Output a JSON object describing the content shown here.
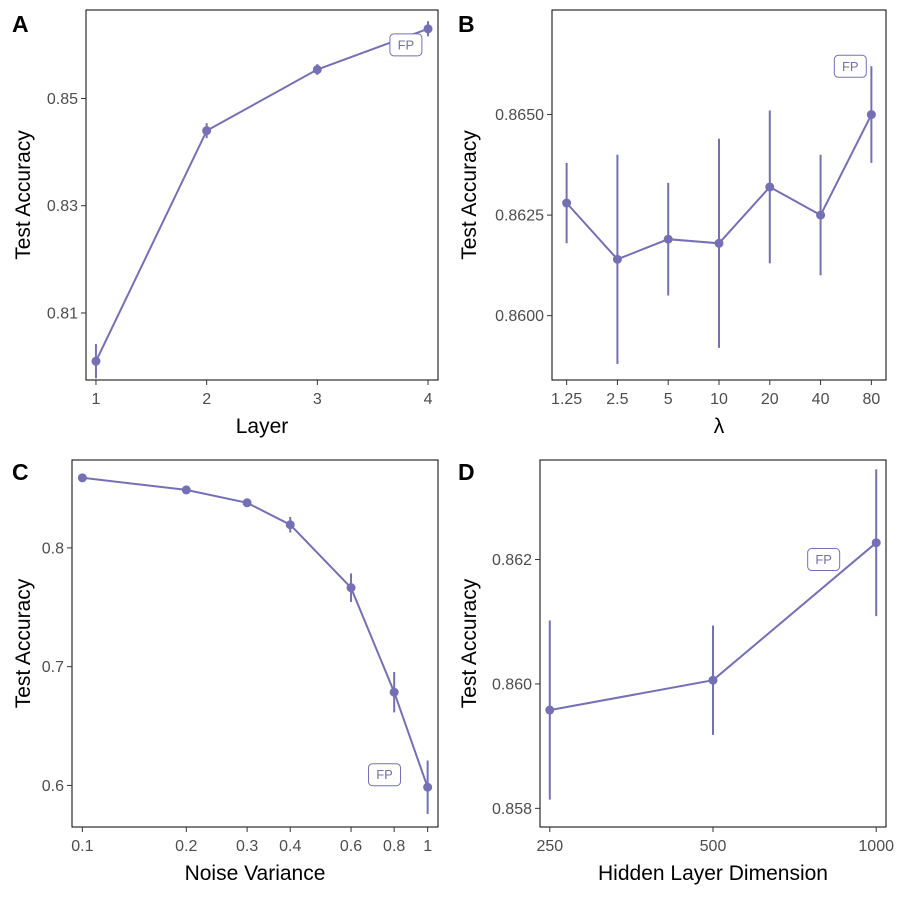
{
  "colors": {
    "series": "#7570b3",
    "frame": "#000000",
    "tick_text": "#4d4d4d"
  },
  "chart_data": [
    {
      "panel": "A",
      "type": "line",
      "xlabel": "Layer",
      "ylabel": "Test Accuracy",
      "x_scale": "linear",
      "x": [
        1,
        2,
        3,
        4
      ],
      "x_ticks": [
        "1",
        "2",
        "3",
        "4"
      ],
      "y": [
        0.801,
        0.844,
        0.8554,
        0.863
      ],
      "y_err": [
        0.0032,
        0.0014,
        0.001,
        0.0014
      ],
      "y_ticks": [
        "0.81",
        "0.83",
        "0.85"
      ],
      "y_tick_values": [
        0.81,
        0.83,
        0.85
      ],
      "ylim": [
        0.7975,
        0.8665
      ],
      "annotation": "FP",
      "annotation_at": [
        3.8,
        0.86
      ],
      "grid": false
    },
    {
      "panel": "B",
      "type": "line",
      "xlabel": "λ",
      "ylabel": "Test Accuracy",
      "x_scale": "log",
      "x": [
        1.25,
        2.5,
        5,
        10,
        20,
        40,
        80
      ],
      "x_ticks": [
        "1.25",
        "2.5",
        "5",
        "10",
        "20",
        "40",
        "80"
      ],
      "y": [
        0.8628,
        0.8614,
        0.8619,
        0.8618,
        0.8632,
        0.8625,
        0.865
      ],
      "y_err": [
        0.001,
        0.0026,
        0.0014,
        0.0026,
        0.0019,
        0.0015,
        0.0012
      ],
      "y_ticks": [
        "0.8600",
        "0.8625",
        "0.8650"
      ],
      "y_tick_values": [
        0.86,
        0.8625,
        0.865
      ],
      "ylim": [
        0.8584,
        0.8676
      ],
      "annotation": "FP",
      "annotation_at": [
        60,
        0.8662
      ],
      "grid": false
    },
    {
      "panel": "C",
      "type": "line",
      "xlabel": "Noise Variance",
      "ylabel": "Test Accuracy",
      "x_scale": "log",
      "x": [
        0.1,
        0.2,
        0.3,
        0.4,
        0.6,
        0.8,
        1
      ],
      "x_ticks": [
        "0.1",
        "0.2",
        "0.3",
        "0.4",
        "0.6",
        "0.8",
        "1"
      ],
      "y": [
        0.859,
        0.8488,
        0.838,
        0.8195,
        0.7665,
        0.6785,
        0.5985
      ],
      "y_err": [
        0.0025,
        0.003,
        0.0035,
        0.0065,
        0.012,
        0.017,
        0.0225
      ],
      "y_ticks": [
        "0.6",
        "0.7",
        "0.8"
      ],
      "y_tick_values": [
        0.6,
        0.7,
        0.8
      ],
      "ylim": [
        0.565,
        0.874
      ],
      "annotation": "FP",
      "annotation_at": [
        0.75,
        0.609
      ],
      "grid": false
    },
    {
      "panel": "D",
      "type": "line",
      "xlabel": "Hidden Layer Dimension",
      "ylabel": "Test Accuracy",
      "x_scale": "log",
      "x": [
        250,
        500,
        1000
      ],
      "x_ticks": [
        "250",
        "500",
        "1000"
      ],
      "y": [
        0.85958,
        0.86006,
        0.86227
      ],
      "y_err": [
        0.00144,
        0.00088,
        0.00118
      ],
      "y_ticks": [
        "0.858",
        "0.860",
        "0.862"
      ],
      "y_tick_values": [
        0.858,
        0.86,
        0.862
      ],
      "ylim": [
        0.8577,
        0.8636
      ],
      "annotation": "FP",
      "annotation_at": [
        800,
        0.862
      ],
      "grid": false
    }
  ]
}
